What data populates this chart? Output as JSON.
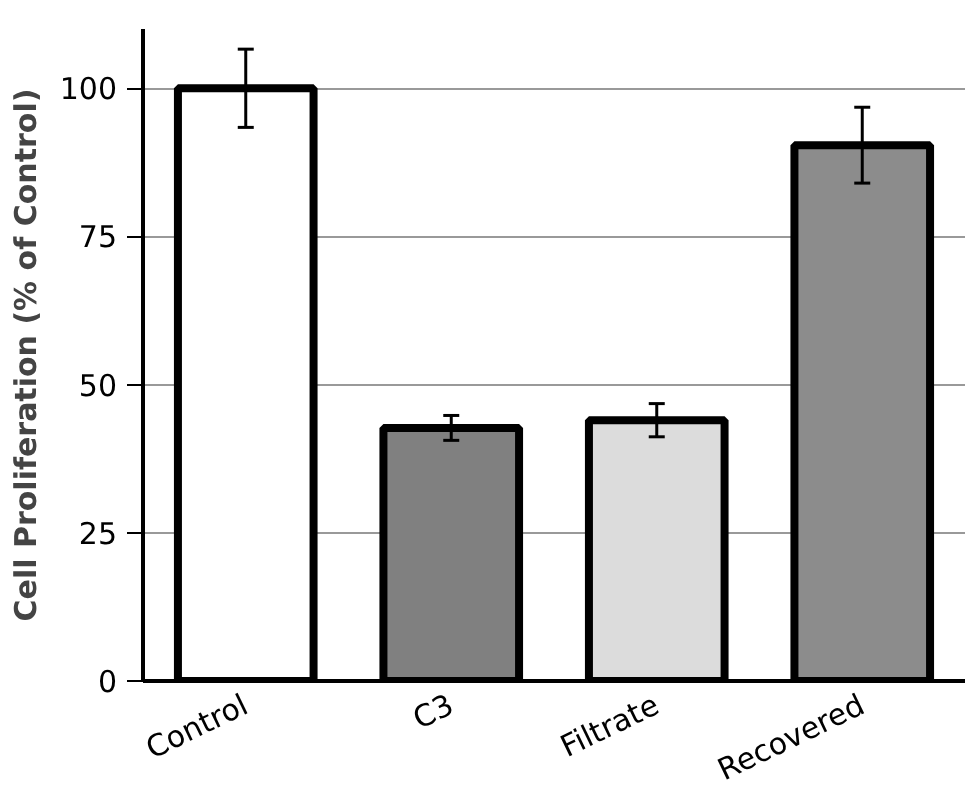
{
  "chart_data": {
    "type": "bar",
    "ylabel": "Cell Proliferation (% of Control)",
    "categories": [
      "Control",
      "C3",
      "Filtrate",
      "Recovered"
    ],
    "values": [
      100,
      42.7,
      44.0,
      90.4
    ],
    "errors": [
      6.6,
      2.1,
      2.8,
      6.4
    ],
    "colors": [
      "#ffffff",
      "#808080",
      "#dcdcdc",
      "#8c8c8c"
    ],
    "ylim": [
      0,
      110
    ],
    "yticks": [
      0,
      25,
      50,
      75,
      100
    ],
    "grid": "y"
  }
}
